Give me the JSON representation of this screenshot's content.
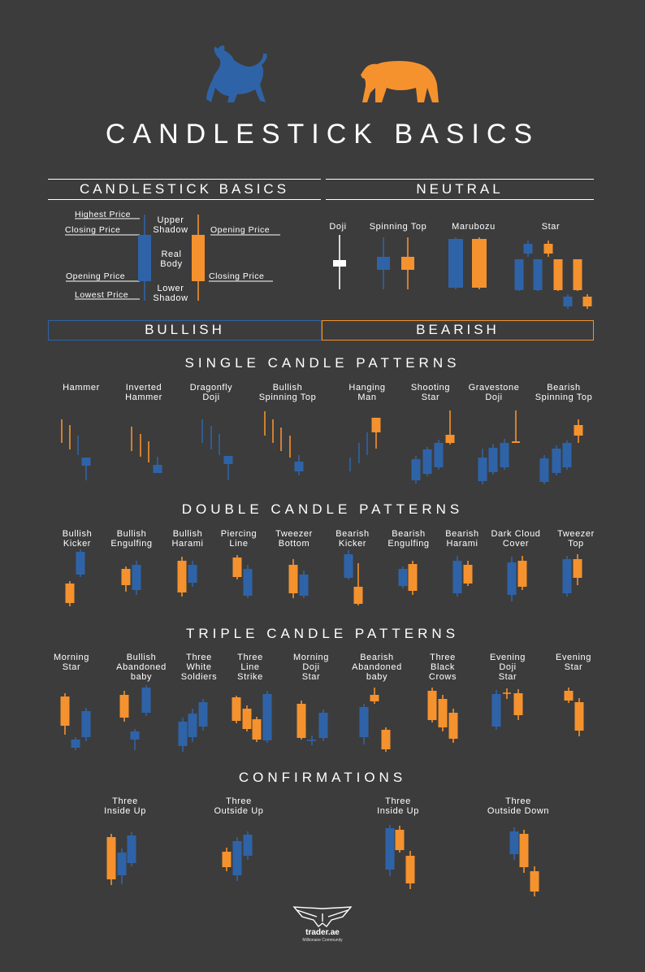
{
  "colors": {
    "bg": "#3c3c3c",
    "bull": "#2f63a8",
    "bear": "#f5922e",
    "text": "#ffffff"
  },
  "title": "CANDLESTICK BASICS",
  "basics": {
    "header": "CANDLESTICK BASICS",
    "highest_price": "Highest Price",
    "closing_price_left": "Closing Price",
    "opening_price_left": "Opening Price",
    "lowest_price": "Lowest Price",
    "upper_shadow": "Upper\nShadow",
    "real_body": "Real\nBody",
    "lower_shadow": "Lower\nShadow",
    "opening_price_right": "Opening Price",
    "closing_price_right": "Closing Price"
  },
  "neutral": {
    "header": "NEUTRAL",
    "labels": [
      "Doji",
      "Spinning Top",
      "Marubozu",
      "Star"
    ]
  },
  "bullish_label": "BULLISH",
  "bearish_label": "BEARISH",
  "single": {
    "title": "SINGLE CANDLE PATTERNS",
    "labels": [
      "Hammer",
      "Inverted\nHammer",
      "Dragonfly\nDoji",
      "Bullish\nSpinning Top",
      "Hanging\nMan",
      "Shooting\nStar",
      "Gravestone\nDoji",
      "Bearish\nSpinning Top"
    ]
  },
  "double": {
    "title": "DOUBLE CANDLE PATTERNS",
    "labels": [
      "Bullish\nKicker",
      "Bullish\nEngulfing",
      "Bullish\nHarami",
      "Piercing\nLine",
      "Tweezer\nBottom",
      "Bearish\nKicker",
      "Bearish\nEngulfing",
      "Bearish\nHarami",
      "Dark Cloud\nCover",
      "Tweezer\nTop"
    ]
  },
  "triple": {
    "title": "TRIPLE CANDLE PATTERNS",
    "labels": [
      "Morning\nStar",
      "Bullish\nAbandoned\nbaby",
      "Three\nWhite\nSoldiers",
      "Three\nLine\nStrike",
      "Morning\nDoji\nStar",
      "Bearish\nAbandoned\nbaby",
      "Three\nBlack\nCrows",
      "Evening\nDoji\nStar",
      "Evening\nStar"
    ]
  },
  "confirm": {
    "title": "CONFIRMATIONS",
    "labels": [
      "Three\nInside Up",
      "Three\nOutside Up",
      "Three\nInside Up",
      "Three\nOutside Down"
    ]
  },
  "brand": {
    "name": "trader.ae",
    "tagline": "Millionaire Community"
  },
  "icons": [
    "bull-icon",
    "bear-icon",
    "eagle-logo-icon"
  ]
}
